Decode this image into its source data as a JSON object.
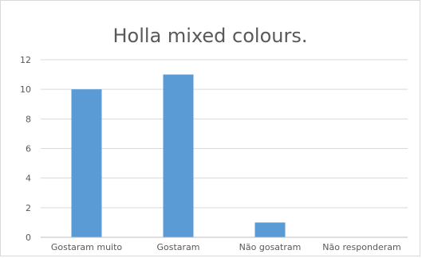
{
  "chart_data": {
    "type": "bar",
    "title": "Holla mixed colours.",
    "categories": [
      "Gostaram muito",
      "Gostaram",
      "Não gosatram",
      "Não responderam"
    ],
    "values": [
      10,
      11,
      1,
      0
    ],
    "ylim": [
      0,
      12
    ],
    "yticks": [
      0,
      2,
      4,
      6,
      8,
      10,
      12
    ],
    "grid": true,
    "legend": "none",
    "colors": {
      "bar": "#5b9bd5"
    }
  }
}
